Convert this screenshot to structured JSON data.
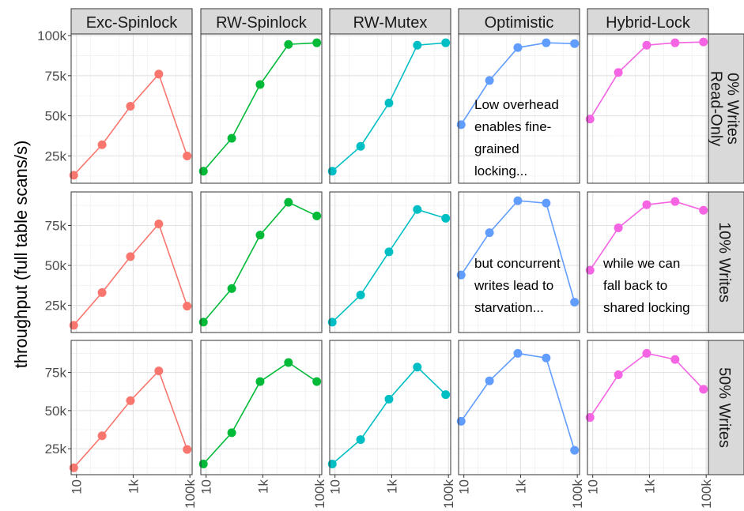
{
  "chart_data": {
    "type": "line",
    "ylabel": "throughput (full table scans/s)",
    "x_scale": "log10",
    "x_values": [
      8,
      80,
      800,
      8000,
      80000
    ],
    "x_ticks": [
      {
        "value": 10,
        "label": "10"
      },
      {
        "value": 1000,
        "label": "1k"
      },
      {
        "value": 100000,
        "label": "100k"
      }
    ],
    "columns": [
      {
        "name": "Exc-Spinlock",
        "color": "#F8766D"
      },
      {
        "name": "RW-Spinlock",
        "color": "#00BA38"
      },
      {
        "name": "RW-Mutex",
        "color": "#00BFC4"
      },
      {
        "name": "Optimistic",
        "color": "#619CFF"
      },
      {
        "name": "Hybrid-Lock",
        "color": "#F564E3"
      }
    ],
    "rows": [
      {
        "name_lines": [
          "0% Writes",
          "Read-Only"
        ],
        "ylim": [
          8000,
          101000
        ],
        "y_ticks": [
          {
            "value": 25000,
            "label": "25k"
          },
          {
            "value": 50000,
            "label": "50k"
          },
          {
            "value": 75000,
            "label": "75k"
          },
          {
            "value": 100000,
            "label": "100k"
          }
        ],
        "series": [
          [
            13000,
            32000,
            56000,
            76000,
            25000
          ],
          [
            15500,
            36000,
            69500,
            94500,
            95500
          ],
          [
            15500,
            31000,
            58000,
            94000,
            95500
          ],
          [
            44500,
            72000,
            92500,
            95500,
            95000
          ],
          [
            48000,
            77000,
            94000,
            95500,
            96000
          ]
        ]
      },
      {
        "name_lines": [
          "10% Writes"
        ],
        "ylim": [
          8000,
          96000
        ],
        "y_ticks": [
          {
            "value": 25000,
            "label": "25k"
          },
          {
            "value": 50000,
            "label": "50k"
          },
          {
            "value": 75000,
            "label": "75k"
          }
        ],
        "series": [
          [
            12500,
            33000,
            55500,
            76000,
            24500
          ],
          [
            14500,
            35500,
            69000,
            89500,
            81000
          ],
          [
            14500,
            31500,
            58500,
            85000,
            79500
          ],
          [
            44000,
            70500,
            90500,
            89000,
            27000
          ],
          [
            47000,
            73500,
            88000,
            90000,
            84500
          ]
        ]
      },
      {
        "name_lines": [
          "50% Writes"
        ],
        "ylim": [
          8000,
          96000
        ],
        "y_ticks": [
          {
            "value": 25000,
            "label": "25k"
          },
          {
            "value": 50000,
            "label": "50k"
          },
          {
            "value": 75000,
            "label": "75k"
          }
        ],
        "series": [
          [
            12500,
            33500,
            56500,
            76000,
            24500
          ],
          [
            15000,
            35500,
            69000,
            81500,
            69000
          ],
          [
            15000,
            31000,
            57500,
            78500,
            60500
          ],
          [
            43000,
            69500,
            87500,
            84500,
            24000
          ],
          [
            45500,
            73500,
            87500,
            83500,
            64000
          ]
        ]
      }
    ],
    "annotations": [
      {
        "row": 0,
        "col": 3,
        "lines": [
          "Low overhead",
          "enables fine-",
          "grained",
          "locking..."
        ]
      },
      {
        "row": 1,
        "col": 3,
        "lines": [
          "but concurrent",
          "writes lead to",
          "starvation..."
        ]
      },
      {
        "row": 1,
        "col": 4,
        "lines": [
          "while we can",
          "fall back to",
          "shared locking"
        ]
      }
    ]
  }
}
